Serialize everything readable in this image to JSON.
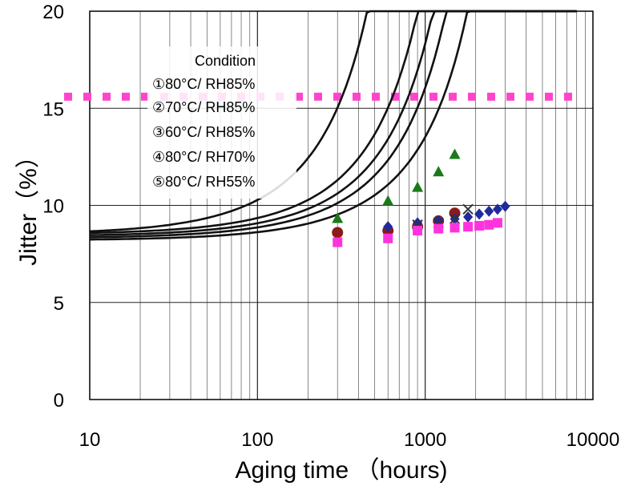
{
  "chart_data": {
    "type": "scatter",
    "xlabel": "Aging time （hours)",
    "ylabel": "Jitter（%）",
    "xscale": "log",
    "xlim": [
      10,
      10000
    ],
    "ylim": [
      0,
      20
    ],
    "x_ticks": [
      "10",
      "100",
      "1000",
      "10000"
    ],
    "y_ticks": [
      "0",
      "5",
      "10",
      "15",
      "20"
    ],
    "grid": true,
    "legend": {
      "title": "Condition",
      "placement": "upper-left",
      "entries": [
        "①80°C/ RH85%",
        "②70°C/ RH85%",
        "③60°C/ RH85%",
        "④80°C/ RH70%",
        "⑤80°C/ RH55%"
      ]
    },
    "reference_line": {
      "y": 15.6,
      "color": "#ff44cc",
      "style": "dotted"
    },
    "series": [
      {
        "marker": "triangle",
        "color": "#1a7a1a",
        "x": [
          300,
          600,
          900,
          1200,
          1500
        ],
        "y": [
          9.3,
          10.2,
          10.9,
          11.7,
          12.6
        ]
      },
      {
        "marker": "circle",
        "color": "#8b1a1a",
        "x": [
          300,
          600,
          900,
          1200,
          1500
        ],
        "y": [
          8.6,
          8.7,
          8.9,
          9.2,
          9.6
        ]
      },
      {
        "marker": "diamond",
        "color": "#1f2a9c",
        "x": [
          600,
          900,
          1200,
          1500,
          1800,
          2100,
          2400,
          2700,
          3000
        ],
        "y": [
          8.9,
          9.1,
          9.2,
          9.3,
          9.4,
          9.55,
          9.7,
          9.8,
          9.95
        ]
      },
      {
        "marker": "x",
        "color": "#333333",
        "x": [
          900,
          1200,
          1500,
          1800
        ],
        "y": [
          9.0,
          9.1,
          9.3,
          9.8
        ]
      },
      {
        "marker": "square",
        "color": "#ff33dd",
        "x": [
          300,
          600,
          900,
          1200,
          1500,
          1800,
          2100,
          2400,
          2700
        ],
        "y": [
          8.1,
          8.3,
          8.7,
          8.8,
          8.85,
          8.9,
          8.95,
          9.0,
          9.1
        ]
      }
    ],
    "fit_curves": [
      {
        "a": 8.5,
        "b": 0.0019,
        "x_max": 3000
      },
      {
        "a": 8.5,
        "b": 0.00095,
        "x_max": 8000
      },
      {
        "a": 8.4,
        "b": 0.00078,
        "x_max": 8000
      },
      {
        "a": 8.3,
        "b": 0.00066,
        "x_max": 8000
      },
      {
        "a": 8.2,
        "b": 0.0005,
        "x_max": 8000
      }
    ]
  }
}
